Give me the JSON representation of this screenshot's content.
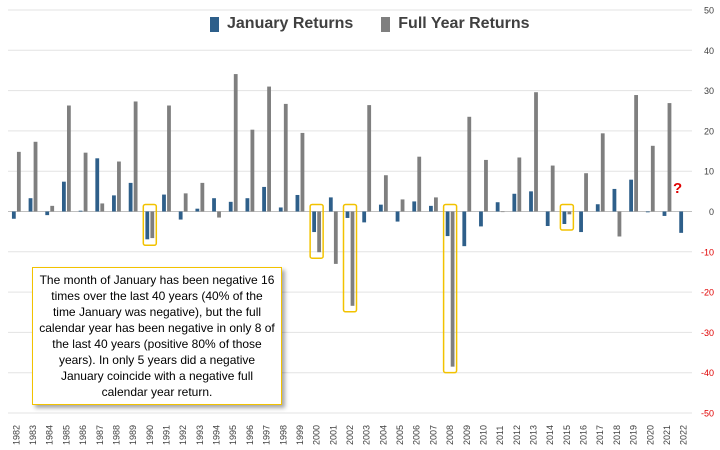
{
  "legend": {
    "january_label": "January Returns",
    "full_year_label": "Full Year Returns"
  },
  "annotation": {
    "text": "The month of January has been negative 16 times over the last 40 years (40% of the time January was negative), but the full calendar year has been negative in only 8 of the last 40 years (positive 80% of those years). In only 5 years did a negative January coincide with a negative full calendar year return."
  },
  "question_mark": "?",
  "colors": {
    "january": "#2e5f8a",
    "full_year": "#7f7f7f",
    "highlight": "#f2c200",
    "negative_tick": "#e00000",
    "positive_tick": "#404040"
  },
  "chart_data": {
    "type": "bar",
    "categories": [
      "1982",
      "1983",
      "1984",
      "1985",
      "1986",
      "1987",
      "1988",
      "1989",
      "1990",
      "1991",
      "1992",
      "1993",
      "1994",
      "1995",
      "1996",
      "1997",
      "1998",
      "1999",
      "2000",
      "2001",
      "2002",
      "2003",
      "2004",
      "2005",
      "2006",
      "2007",
      "2008",
      "2009",
      "2010",
      "2011",
      "2012",
      "2013",
      "2014",
      "2015",
      "2016",
      "2017",
      "2018",
      "2019",
      "2020",
      "2021",
      "2022"
    ],
    "series": [
      {
        "name": "January Returns",
        "values": [
          -1.8,
          3.3,
          -0.9,
          7.4,
          0.2,
          13.2,
          4.0,
          7.1,
          -6.9,
          4.2,
          -2.0,
          0.7,
          3.3,
          2.4,
          3.3,
          6.1,
          1.0,
          4.1,
          -5.1,
          3.5,
          -1.6,
          -2.7,
          1.7,
          -2.5,
          2.5,
          1.4,
          -6.1,
          -8.6,
          -3.7,
          2.3,
          4.4,
          5.0,
          -3.6,
          -3.1,
          -5.1,
          1.8,
          5.6,
          7.9,
          -0.2,
          -1.1,
          -5.3
        ]
      },
      {
        "name": "Full Year Returns",
        "values": [
          14.8,
          17.3,
          1.4,
          26.3,
          14.6,
          2.0,
          12.4,
          27.3,
          -6.6,
          26.3,
          4.5,
          7.1,
          -1.5,
          34.1,
          20.3,
          31.0,
          26.7,
          19.5,
          -10.1,
          -13.0,
          -23.4,
          26.4,
          9.0,
          3.0,
          13.6,
          3.5,
          -38.5,
          23.5,
          12.8,
          0.0,
          13.4,
          29.6,
          11.4,
          -0.7,
          9.5,
          19.4,
          -6.2,
          28.9,
          16.3,
          26.9,
          null
        ]
      }
    ],
    "highlighted_years": [
      "1990",
      "2000",
      "2002",
      "2008",
      "2015"
    ],
    "ylim": [
      -50,
      50
    ],
    "yticks": [
      -50,
      -40,
      -30,
      -20,
      -10,
      0,
      10,
      20,
      30,
      40,
      50
    ],
    "y_axis_side": "right",
    "grid": true,
    "legend_position": "top-center",
    "title": "",
    "xlabel": "",
    "ylabel": ""
  }
}
